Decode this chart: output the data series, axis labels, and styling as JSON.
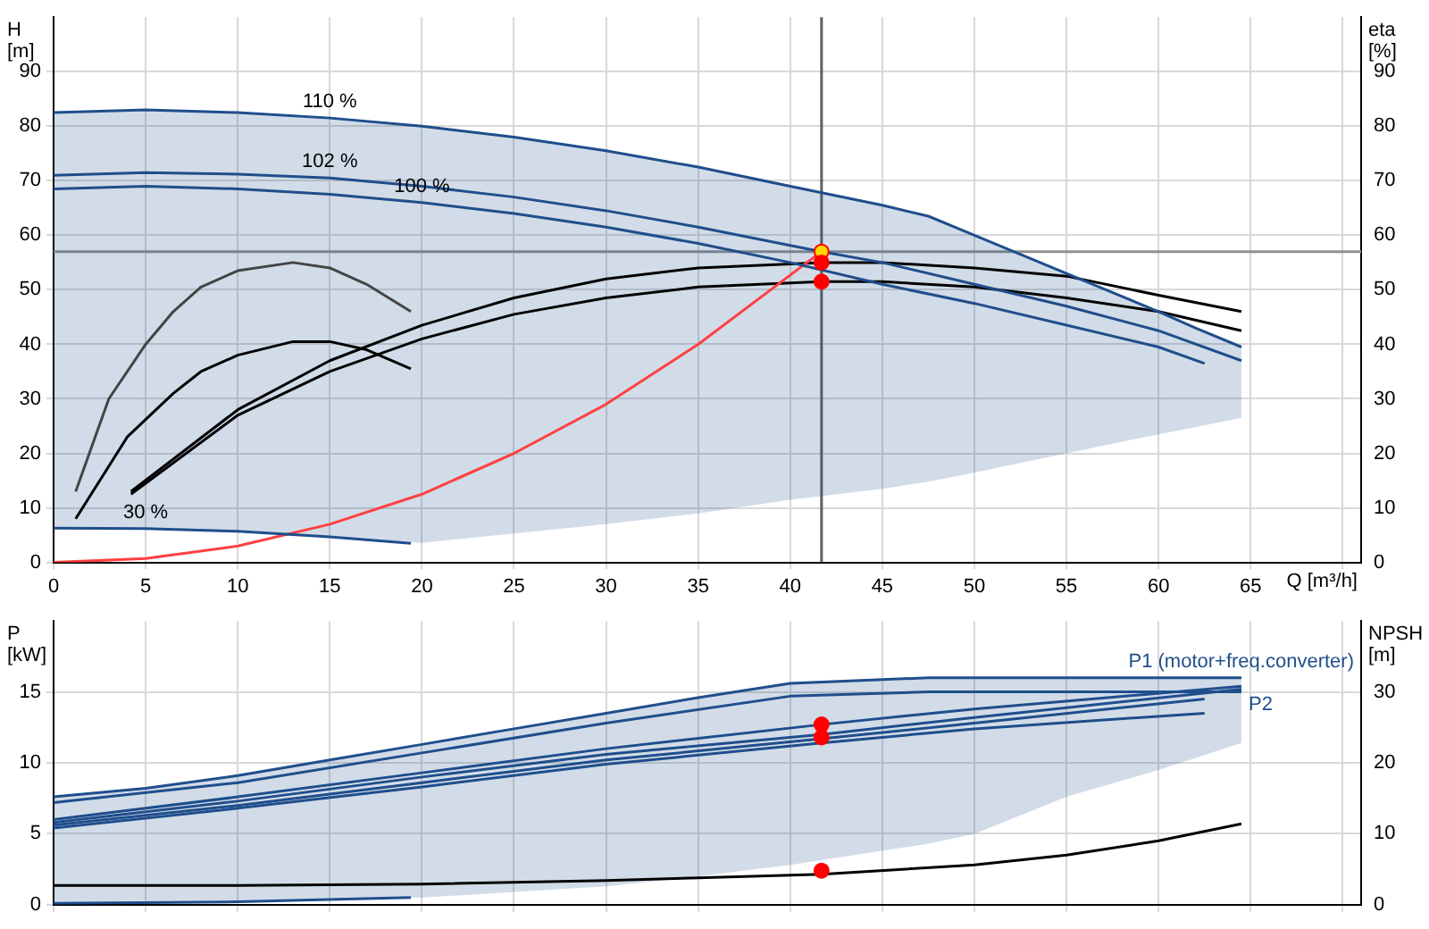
{
  "chart_data": [
    {
      "type": "line",
      "xlabel": "Q [m³/h]",
      "ylabel": "H [m]",
      "y2label": "eta [%]",
      "xlim": [
        0,
        71
      ],
      "xticks": [
        0,
        5,
        10,
        15,
        20,
        25,
        30,
        35,
        40,
        45,
        50,
        55,
        60,
        65,
        {
          "value": 70,
          "label": null
        }
      ],
      "ylim": [
        0,
        100
      ],
      "yticks": [
        0,
        10,
        20,
        30,
        40,
        50,
        60,
        70,
        80,
        90
      ],
      "y2lim": [
        0,
        100
      ],
      "y2ticks": [
        0,
        10,
        20,
        30,
        40,
        50,
        60,
        70,
        80,
        90
      ],
      "grid": true,
      "legend": false,
      "series": [
        {
          "type": "line",
          "color": "#1f4e8c",
          "x": [
            0,
            5,
            10,
            15,
            20,
            25,
            30,
            35,
            40,
            45,
            47.5,
            50,
            55,
            60,
            62,
            64.5
          ],
          "values": [
            82.5,
            83,
            82.5,
            81.5,
            80,
            78,
            75.5,
            72.5,
            69,
            65.5,
            63.5,
            60,
            53,
            46,
            43,
            39.5
          ],
          "upper": [
            82.5,
            83,
            82.5,
            81.5,
            80,
            78,
            75.5,
            72.5,
            69,
            65.5,
            63.5,
            60,
            53,
            46,
            43,
            39.5
          ],
          "lower": [
            6.3,
            6.2,
            5.7,
            4.7,
            3.6,
            5.3,
            7,
            9,
            11.5,
            13.5,
            14.8,
            16.5,
            20,
            23.5,
            24.8,
            26.5
          ]
        },
        {
          "type": "line",
          "color": "#1f4e8c",
          "x": [
            0,
            5,
            10,
            15,
            20,
            25,
            30,
            35,
            41.7,
            45,
            50,
            55,
            60,
            64.5
          ],
          "values": [
            71,
            71.5,
            71.2,
            70.5,
            69,
            67,
            64.5,
            61.5,
            57,
            55,
            51,
            47,
            42.5,
            37
          ]
        },
        {
          "type": "line",
          "color": "#1f4e8c",
          "x": [
            0,
            5,
            10,
            15,
            20,
            25,
            30,
            35,
            40,
            45,
            50,
            55,
            60,
            62.5
          ],
          "values": [
            68.5,
            69,
            68.5,
            67.5,
            66,
            64,
            61.5,
            58.5,
            55,
            51,
            47.5,
            43.5,
            39.5,
            36.5
          ]
        },
        {
          "type": "line",
          "color": "#1f4e8c",
          "x": [
            0,
            5,
            10,
            15,
            19.4
          ],
          "values": [
            6.3,
            6.2,
            5.7,
            4.7,
            3.5
          ]
        },
        {
          "type": "line",
          "color": "#ff4040",
          "x": [
            0,
            5,
            10,
            15,
            20,
            25,
            30,
            35,
            41.7
          ],
          "values": [
            0,
            0.7,
            3,
            7,
            12.5,
            20,
            29,
            40,
            57
          ]
        },
        {
          "type": "line",
          "color": "#000000",
          "axis": "y2",
          "x": [
            4.2,
            10,
            15,
            20,
            25,
            30,
            35,
            41.7,
            45,
            50,
            55,
            60,
            64.5
          ],
          "values": [
            12.5,
            27,
            35,
            41,
            45.5,
            48.5,
            50.5,
            51.5,
            51.5,
            50.5,
            48.5,
            46,
            42.5
          ]
        },
        {
          "type": "line",
          "color": "#000000",
          "axis": "y2",
          "x": [
            4.2,
            10,
            15,
            20,
            25,
            30,
            35,
            41.7,
            45,
            50,
            55,
            60,
            64.5
          ],
          "values": [
            13,
            28,
            37,
            43.5,
            48.5,
            52,
            54,
            55,
            55,
            54,
            52.5,
            49,
            46
          ]
        },
        {
          "type": "line",
          "color": "#444444",
          "axis": "y2",
          "x": [
            1.2,
            3,
            5,
            6.5,
            8,
            10,
            13,
            15,
            17,
            19.4
          ],
          "values": [
            13,
            30,
            40,
            46,
            50.5,
            53.5,
            55,
            54,
            51,
            46
          ]
        },
        {
          "type": "line",
          "color": "#000000",
          "axis": "y2",
          "x": [
            1.2,
            4,
            6.5,
            8,
            10,
            13,
            15,
            17,
            19.4
          ],
          "values": [
            8,
            23,
            31,
            35,
            38,
            40.5,
            40.5,
            39,
            35.5
          ]
        },
        {
          "type": "scatter",
          "x": [
            41.7,
            41.7,
            41.7
          ],
          "values": [
            57,
            55,
            51.5
          ],
          "colors": [
            "#ffd700",
            "#ff0000",
            "#ff0000"
          ]
        }
      ],
      "ref_lines": [
        {
          "axis": "y",
          "value": 57,
          "color": "#909090"
        },
        {
          "axis": "x",
          "value": 41.7,
          "color": "#606060"
        }
      ],
      "annotations": [
        {
          "text": "110 %",
          "x": 15,
          "y": 81.5
        },
        {
          "text": "102 %",
          "x": 15,
          "y": 70.5
        },
        {
          "text": "100 %",
          "x": 20,
          "y": 66
        },
        {
          "text": "30 %",
          "x": 5,
          "y": 6.2
        }
      ]
    },
    {
      "type": "line",
      "ylabel": "P [kW]",
      "y2label": "NPSH [m]",
      "xlim": [
        0,
        71
      ],
      "xticks": [
        0,
        5,
        10,
        15,
        20,
        25,
        30,
        35,
        40,
        45,
        50,
        55,
        60,
        65,
        70
      ],
      "ylim": [
        0,
        20
      ],
      "yticks": [
        0,
        5,
        10,
        15
      ],
      "y2lim": [
        0,
        40
      ],
      "y2ticks": [
        0,
        10,
        20,
        30
      ],
      "grid": true,
      "legend": false,
      "tick_labels": "y",
      "series": [
        {
          "type": "line",
          "color": "#1f4e8c",
          "x": [
            0,
            5,
            10,
            15,
            20,
            25,
            30,
            35,
            40,
            47.5,
            50,
            55,
            60,
            64.5
          ],
          "values": [
            7.6,
            8.2,
            9.1,
            10.2,
            11.3,
            12.4,
            13.5,
            14.6,
            15.6,
            16,
            16,
            16,
            16,
            16
          ],
          "upper": [
            7.6,
            8.2,
            9.1,
            10.2,
            11.3,
            12.4,
            13.5,
            14.6,
            15.6,
            16,
            16,
            16,
            16,
            16
          ],
          "lower": [
            0.1,
            0.1,
            0.2,
            0.3,
            0.5,
            0.9,
            1.3,
            2,
            2.8,
            4.3,
            5,
            7.6,
            9.5,
            11.4
          ]
        },
        {
          "type": "line",
          "color": "#1f4e8c",
          "x": [
            0,
            10,
            20,
            30,
            40,
            47.5,
            64.5
          ],
          "values": [
            7.2,
            8.6,
            10.7,
            12.8,
            14.7,
            15,
            15
          ]
        },
        {
          "type": "line",
          "color": "#1f4e8c",
          "x": [
            0,
            10,
            20,
            30,
            41.7,
            50,
            64.5
          ],
          "values": [
            6,
            7.6,
            9.3,
            11,
            12.7,
            13.8,
            15.4
          ]
        },
        {
          "type": "line",
          "color": "#1f4e8c",
          "x": [
            0,
            10,
            20,
            30,
            41.7,
            50,
            64.5
          ],
          "values": [
            5.8,
            7.3,
            9,
            10.6,
            12,
            13.2,
            15.2
          ]
        },
        {
          "type": "line",
          "color": "#1f4e8c",
          "x": [
            0,
            10,
            20,
            30,
            41.7,
            50,
            62.5
          ],
          "values": [
            5.6,
            7,
            8.6,
            10.2,
            11.7,
            12.8,
            14.5
          ]
        },
        {
          "type": "line",
          "color": "#1f4e8c",
          "x": [
            0,
            10,
            20,
            30,
            41.7,
            50,
            62.5
          ],
          "values": [
            5.4,
            6.8,
            8.3,
            9.9,
            11.4,
            12.4,
            13.5
          ]
        },
        {
          "type": "line",
          "color": "#1f4e8c",
          "x": [
            0,
            10,
            19.4
          ],
          "values": [
            0.1,
            0.2,
            0.5
          ]
        },
        {
          "type": "line",
          "color": "#000000",
          "axis": "y2",
          "x": [
            0,
            10,
            20,
            30,
            35,
            41.7,
            50,
            55,
            60,
            64.5
          ],
          "values": [
            2.7,
            2.7,
            2.9,
            3.4,
            3.8,
            4.3,
            5.6,
            7,
            9,
            11.4
          ]
        },
        {
          "type": "scatter",
          "x": [
            41.7,
            41.7,
            41.7
          ],
          "values": [
            12.7,
            11.8,
            2.4
          ],
          "colors": [
            "#ff0000",
            "#ff0000",
            "#ff0000"
          ]
        }
      ],
      "annotations": [
        {
          "text": "P1 (motor+freq.converter)",
          "x": 64.5,
          "y": 16
        },
        {
          "text": "P2",
          "x": 64.5,
          "y": 15.2
        }
      ]
    }
  ]
}
